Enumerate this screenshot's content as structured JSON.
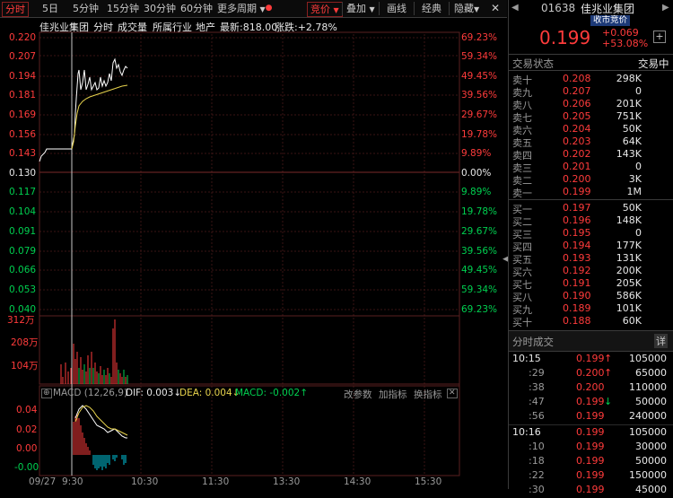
{
  "toolbar": {
    "items": [
      {
        "label": "分时",
        "active": true
      },
      {
        "label": "5日"
      },
      {
        "label": "5分钟"
      },
      {
        "label": "15分钟"
      },
      {
        "label": "30分钟"
      },
      {
        "label": "60分钟"
      },
      {
        "label": "更多周期"
      },
      {
        "label": "竞价",
        "active": true
      },
      {
        "label": "叠加"
      },
      {
        "label": "画线"
      },
      {
        "label": "经典"
      },
      {
        "label": "隐藏"
      }
    ]
  },
  "chart_header": {
    "name": "佳兆业集团",
    "tab_minute": "分时",
    "tab_volume": "成交量",
    "tab_industry": "所属行业",
    "tab_region": "地产",
    "latest": "最新:818.00",
    "change": "涨跌:+2.78%"
  },
  "price_axis": {
    "left": [
      "0.220",
      "0.207",
      "0.194",
      "0.181",
      "0.169",
      "0.156",
      "0.143",
      "0.130",
      "0.117",
      "0.104",
      "0.091",
      "0.079",
      "0.066",
      "0.053",
      "0.040"
    ],
    "right": [
      "69.23%",
      "59.34%",
      "49.45%",
      "39.56%",
      "29.67%",
      "19.78%",
      "9.89%",
      "0.00%",
      "9.89%",
      "19.78%",
      "29.67%",
      "39.56%",
      "49.45%",
      "59.34%",
      "69.23%"
    ]
  },
  "volume_axis": [
    "312万",
    "208万",
    "104万"
  ],
  "macd": {
    "label": "MACD (12,26,9)",
    "dif": "DIF: 0.003",
    "dea": "DEA: 0.004",
    "macd": "MACD: -0.002",
    "btn_params": "改参数",
    "btn_add": "加指标",
    "btn_switch": "换指标",
    "axis": [
      "0.04",
      "0.02",
      "0.00",
      "-0.00"
    ]
  },
  "time_axis": [
    "09/27",
    "9:30",
    "10:30",
    "11:30",
    "13:30",
    "14:30",
    "15:30"
  ],
  "quote": {
    "code": "01638",
    "name": "佳兆业集团",
    "session": "收市竞价",
    "price": "0.199",
    "change": "+0.069",
    "change_pct": "+53.08%",
    "status_label": "交易状态",
    "status_value": "交易中"
  },
  "orderbook": {
    "asks": [
      {
        "label": "卖十",
        "price": "0.208",
        "vol": "298K"
      },
      {
        "label": "卖九",
        "price": "0.207",
        "vol": "0"
      },
      {
        "label": "卖八",
        "price": "0.206",
        "vol": "201K"
      },
      {
        "label": "卖七",
        "price": "0.205",
        "vol": "751K"
      },
      {
        "label": "卖六",
        "price": "0.204",
        "vol": "50K"
      },
      {
        "label": "卖五",
        "price": "0.203",
        "vol": "64K"
      },
      {
        "label": "卖四",
        "price": "0.202",
        "vol": "143K"
      },
      {
        "label": "卖三",
        "price": "0.201",
        "vol": "0"
      },
      {
        "label": "卖二",
        "price": "0.200",
        "vol": "3K"
      },
      {
        "label": "卖一",
        "price": "0.199",
        "vol": "1M"
      }
    ],
    "bids": [
      {
        "label": "买一",
        "price": "0.197",
        "vol": "50K"
      },
      {
        "label": "买二",
        "price": "0.196",
        "vol": "148K"
      },
      {
        "label": "买三",
        "price": "0.195",
        "vol": "0"
      },
      {
        "label": "买四",
        "price": "0.194",
        "vol": "177K"
      },
      {
        "label": "买五",
        "price": "0.193",
        "vol": "131K"
      },
      {
        "label": "买六",
        "price": "0.192",
        "vol": "200K"
      },
      {
        "label": "买七",
        "price": "0.191",
        "vol": "205K"
      },
      {
        "label": "买八",
        "price": "0.190",
        "vol": "586K"
      },
      {
        "label": "买九",
        "price": "0.189",
        "vol": "101K"
      },
      {
        "label": "买十",
        "price": "0.188",
        "vol": "60K"
      }
    ]
  },
  "trades": {
    "title": "分时成交",
    "detail": "详",
    "rows": [
      {
        "time": "10:15",
        "price": "0.199",
        "dir": "up",
        "vol": "105000"
      },
      {
        "time": ":29",
        "price": "0.200",
        "dir": "up",
        "vol": "65000"
      },
      {
        "time": ":38",
        "price": "0.200",
        "dir": "",
        "vol": "110000"
      },
      {
        "time": ":47",
        "price": "0.199",
        "dir": "down",
        "vol": "50000"
      },
      {
        "time": ":56",
        "price": "0.199",
        "dir": "",
        "vol": "240000"
      },
      {
        "time": "10:16",
        "price": "0.199",
        "dir": "",
        "vol": "105000"
      },
      {
        "time": ":10",
        "price": "0.199",
        "dir": "",
        "vol": "30000"
      },
      {
        "time": ":18",
        "price": "0.199",
        "dir": "",
        "vol": "50000"
      },
      {
        "time": ":22",
        "price": "0.199",
        "dir": "",
        "vol": "150000"
      },
      {
        "time": ":30",
        "price": "0.199",
        "dir": "",
        "vol": "45000"
      }
    ]
  },
  "colors": {
    "up": "#ff3b3b",
    "down": "#00d050",
    "price_line": "#ffffff",
    "avg_line": "#e8d44d",
    "grid": "#3a1515"
  },
  "chart_data": {
    "type": "line",
    "series": [],
    "x_labels": [
      "09/27",
      "9:30",
      "10:30",
      "11:30",
      "13:30",
      "14:30",
      "15:30"
    ],
    "ylim": [
      0.04,
      0.22
    ]
  }
}
